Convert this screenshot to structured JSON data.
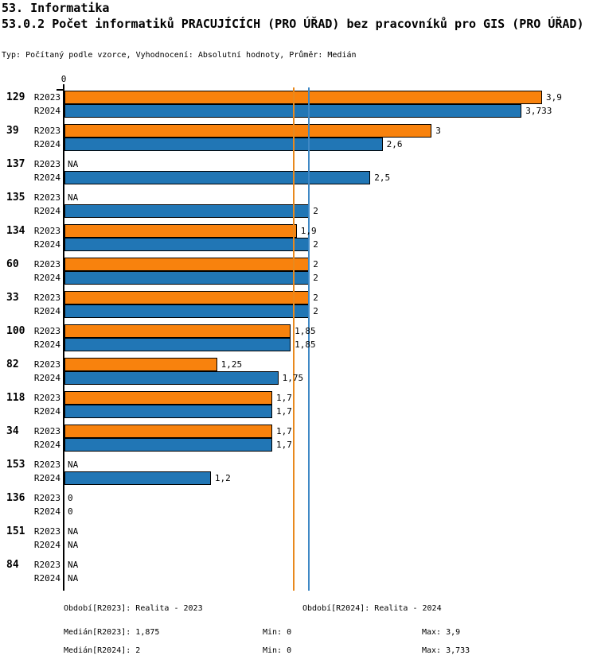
{
  "header": {
    "title": "53. Informatika",
    "subtitle": "53.0.2 Počet informatiků PRACUJÍCÍCH (PRO ÚŘAD) bez pracovníků pro GIS (PRO ÚŘAD)",
    "meta": "Typ: Počítaný podle vzorce, Vyhodnocení: Absolutní hodnoty, Průměr: Medián"
  },
  "chart_data": {
    "type": "bar",
    "orientation": "horizontal",
    "value_axis": {
      "zero_tick_label": "0",
      "min": 0,
      "max": 3.9
    },
    "row_labels": [
      "R2023",
      "R2024"
    ],
    "colors": {
      "r2023": "#f8820d",
      "r2024": "#2176b5"
    },
    "reference_lines": [
      {
        "name": "median-r2023",
        "value": 1.875,
        "color": "#e8891e"
      },
      {
        "name": "median-r2024",
        "value": 2,
        "color": "#3e88c5"
      }
    ],
    "groups": [
      {
        "id": "129",
        "rows": [
          {
            "label": "R2023",
            "value": 3.9,
            "display": "3,9"
          },
          {
            "label": "R2024",
            "value": 3.733,
            "display": "3,733"
          }
        ]
      },
      {
        "id": "39",
        "rows": [
          {
            "label": "R2023",
            "value": 3,
            "display": "3"
          },
          {
            "label": "R2024",
            "value": 2.6,
            "display": "2,6"
          }
        ]
      },
      {
        "id": "137",
        "rows": [
          {
            "label": "R2023",
            "value": null,
            "display": "NA"
          },
          {
            "label": "R2024",
            "value": 2.5,
            "display": "2,5"
          }
        ]
      },
      {
        "id": "135",
        "rows": [
          {
            "label": "R2023",
            "value": null,
            "display": "NA"
          },
          {
            "label": "R2024",
            "value": 2,
            "display": "2"
          }
        ]
      },
      {
        "id": "134",
        "rows": [
          {
            "label": "R2023",
            "value": 1.9,
            "display": "1,9"
          },
          {
            "label": "R2024",
            "value": 2,
            "display": "2"
          }
        ]
      },
      {
        "id": "60",
        "rows": [
          {
            "label": "R2023",
            "value": 2,
            "display": "2"
          },
          {
            "label": "R2024",
            "value": 2,
            "display": "2"
          }
        ]
      },
      {
        "id": "33",
        "rows": [
          {
            "label": "R2023",
            "value": 2,
            "display": "2"
          },
          {
            "label": "R2024",
            "value": 2,
            "display": "2"
          }
        ]
      },
      {
        "id": "100",
        "rows": [
          {
            "label": "R2023",
            "value": 1.85,
            "display": "1,85"
          },
          {
            "label": "R2024",
            "value": 1.85,
            "display": "1,85"
          }
        ]
      },
      {
        "id": "82",
        "rows": [
          {
            "label": "R2023",
            "value": 1.25,
            "display": "1,25"
          },
          {
            "label": "R2024",
            "value": 1.75,
            "display": "1,75"
          }
        ]
      },
      {
        "id": "118",
        "rows": [
          {
            "label": "R2023",
            "value": 1.7,
            "display": "1,7"
          },
          {
            "label": "R2024",
            "value": 1.7,
            "display": "1,7"
          }
        ]
      },
      {
        "id": "34",
        "rows": [
          {
            "label": "R2023",
            "value": 1.7,
            "display": "1,7"
          },
          {
            "label": "R2024",
            "value": 1.7,
            "display": "1,7"
          }
        ]
      },
      {
        "id": "153",
        "rows": [
          {
            "label": "R2023",
            "value": null,
            "display": "NA"
          },
          {
            "label": "R2024",
            "value": 1.2,
            "display": "1,2"
          }
        ]
      },
      {
        "id": "136",
        "rows": [
          {
            "label": "R2023",
            "value": 0,
            "display": "0"
          },
          {
            "label": "R2024",
            "value": 0,
            "display": "0"
          }
        ]
      },
      {
        "id": "151",
        "rows": [
          {
            "label": "R2023",
            "value": null,
            "display": "NA"
          },
          {
            "label": "R2024",
            "value": null,
            "display": "NA"
          }
        ]
      },
      {
        "id": "84",
        "rows": [
          {
            "label": "R2023",
            "value": null,
            "display": "NA"
          },
          {
            "label": "R2024",
            "value": null,
            "display": "NA"
          }
        ]
      }
    ]
  },
  "footer": {
    "period_r2023": "Období[R2023]: Realita - 2023",
    "period_r2024": "Období[R2024]: Realita - 2024",
    "median_r2023": "Medián[R2023]: 1,875",
    "min_r2023": "Min: 0",
    "max_r2023": "Max: 3,9",
    "median_r2024": "Medián[R2024]: 2",
    "min_r2024": "Min: 0",
    "max_r2024": "Max: 3,733"
  }
}
